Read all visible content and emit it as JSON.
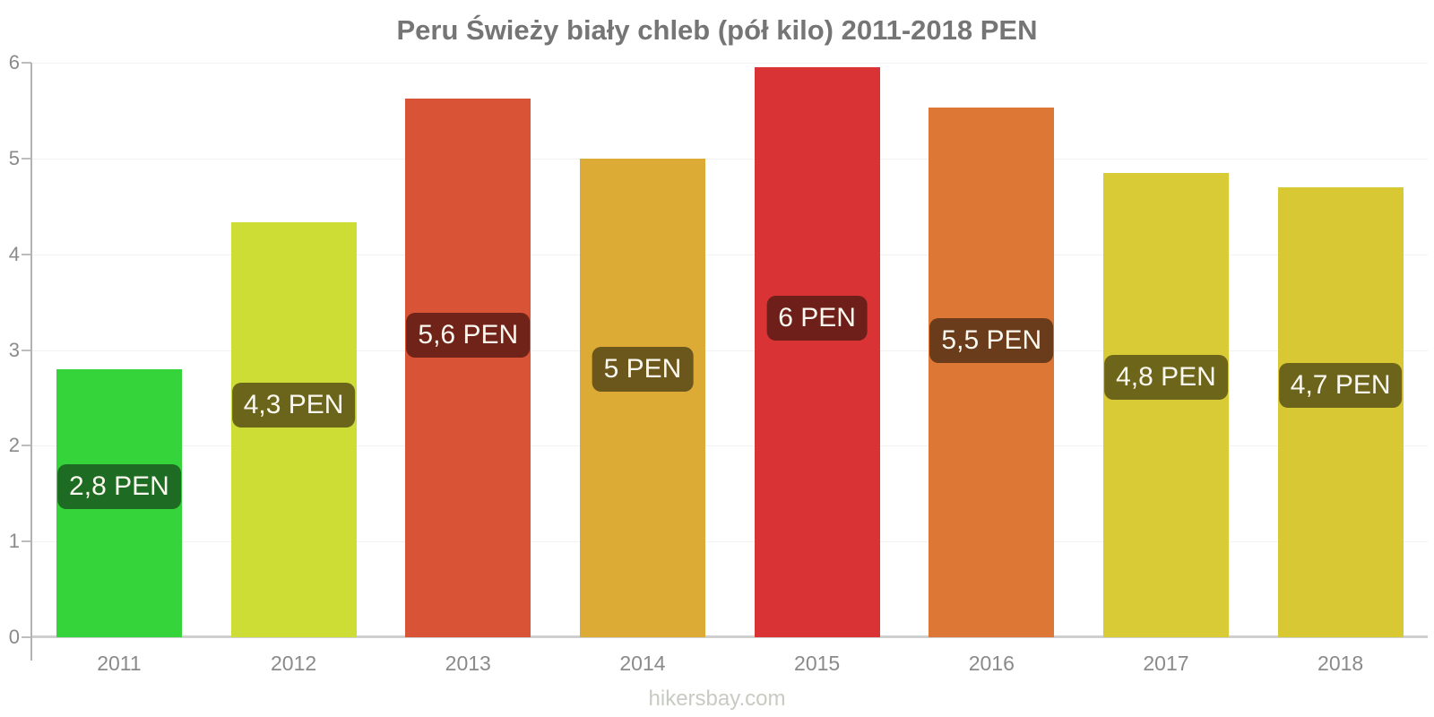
{
  "title": "Peru Świeży biały chleb (pół kilo) 2011-2018 PEN",
  "footer": {
    "label": "hikersbay.com"
  },
  "colors": {
    "background": "#ffffff",
    "title_text": "#757575",
    "axis_line": "#b3b3b3",
    "baseline": "#cfcfcf",
    "gridline": "#f2f2f2",
    "tick_label_text": "#8a8a8a",
    "badge_text": "#fbf8ef",
    "footer_text": "#c8cbc2"
  },
  "chart_data": {
    "type": "bar",
    "title": "Peru Świeży biały chleb (pół kilo) 2011-2018 PEN",
    "xlabel": "",
    "ylabel": "",
    "ylim": [
      0,
      6
    ],
    "yticks": [
      0,
      1,
      2,
      3,
      4,
      5,
      6
    ],
    "grid": "faint horizontal gridlines at integer values",
    "legend": "none",
    "categories": [
      "2011",
      "2012",
      "2013",
      "2014",
      "2015",
      "2016",
      "2017",
      "2018"
    ],
    "values": [
      2.8,
      4.33,
      5.63,
      5.0,
      5.95,
      5.53,
      4.85,
      4.7
    ],
    "value_labels": [
      "2,8 PEN",
      "4,3 PEN",
      "5,6 PEN",
      "5 PEN",
      "6 PEN",
      "5,5 PEN",
      "4,8 PEN",
      "4,7 PEN"
    ],
    "bar_colors": [
      "#35d43a",
      "#cedd35",
      "#d95336",
      "#dcab36",
      "#d93336",
      "#dd7736",
      "#d8cb35",
      "#d8c833"
    ],
    "badge_colors": [
      "#1e6b23",
      "#6b651c",
      "#6f2319",
      "#6b561b",
      "#6f1f1a",
      "#6b3c1b",
      "#6c651a",
      "#6c641a"
    ]
  }
}
